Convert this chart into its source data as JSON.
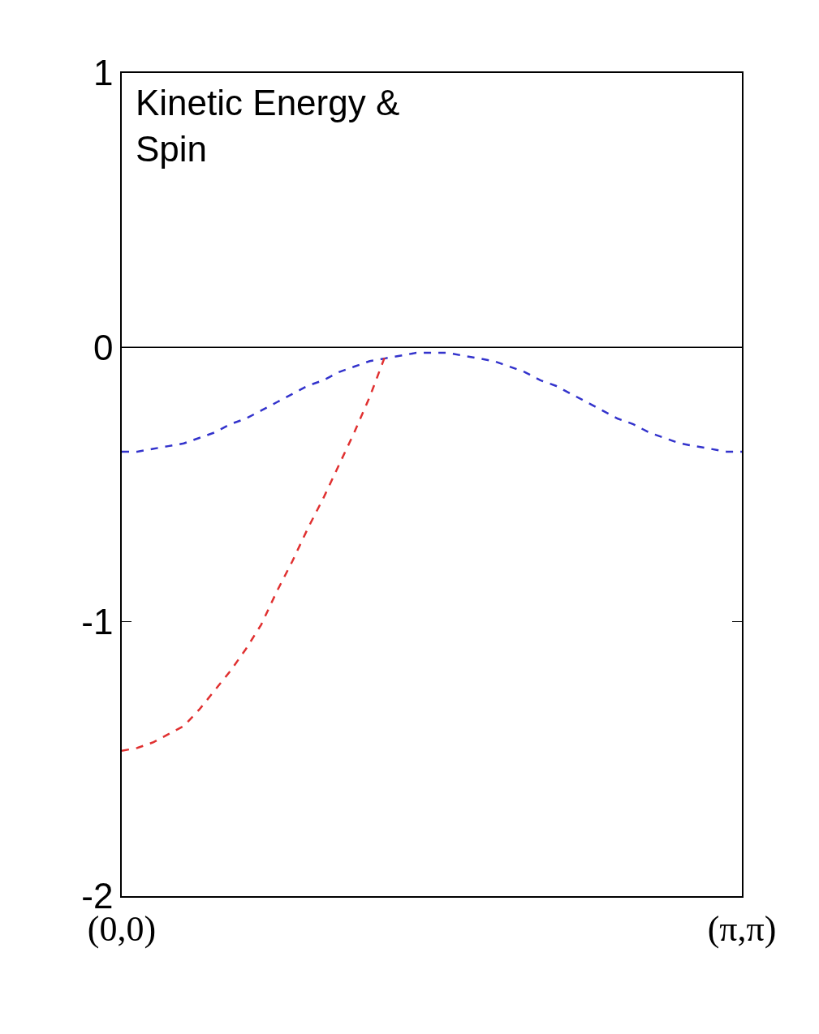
{
  "chart_data": {
    "type": "line",
    "annotations": [
      "Kinetic Energy &\nSpin"
    ],
    "categories": [
      "(0,0)",
      null,
      null,
      null,
      null,
      null,
      null,
      null,
      null,
      null,
      null,
      null,
      null,
      null,
      null,
      null,
      null,
      null,
      null,
      null,
      null,
      null,
      null,
      null,
      null,
      null,
      null,
      null,
      null,
      null,
      null,
      null,
      null,
      null,
      null,
      null,
      null,
      null,
      null,
      null,
      "(π,π)"
    ],
    "ylim": [
      -2,
      1
    ],
    "yticks": [
      -2,
      -1,
      0,
      1
    ],
    "ref_lines": [
      {
        "axis": "y",
        "value": 0,
        "color": "#000000",
        "line_style": "solid"
      }
    ],
    "line_style": "dashed",
    "series": [
      {
        "color": "#3333cc",
        "values": [
          -0.38,
          -0.38,
          -0.37,
          -0.36,
          -0.35,
          -0.33,
          -0.31,
          -0.28,
          -0.26,
          -0.23,
          -0.2,
          -0.17,
          -0.14,
          -0.12,
          -0.09,
          -0.07,
          -0.05,
          -0.04,
          -0.03,
          -0.02,
          -0.02,
          -0.02,
          -0.03,
          -0.04,
          -0.05,
          -0.07,
          -0.09,
          -0.12,
          -0.14,
          -0.17,
          -0.2,
          -0.23,
          -0.26,
          -0.28,
          -0.31,
          -0.33,
          -0.35,
          -0.36,
          -0.37,
          -0.38,
          -0.38
        ]
      },
      {
        "color": "#e03030",
        "values": [
          -1.47,
          -1.46,
          -1.44,
          -1.41,
          -1.38,
          -1.32,
          -1.25,
          -1.18,
          -1.1,
          -1.01,
          -0.89,
          -0.78,
          -0.66,
          -0.55,
          -0.43,
          -0.31,
          -0.18,
          -0.03,
          null,
          null,
          null,
          null,
          null,
          null,
          null,
          null,
          null,
          null,
          null,
          null,
          null,
          null,
          null,
          null,
          null,
          null,
          null,
          null,
          null,
          null,
          null
        ]
      }
    ]
  }
}
